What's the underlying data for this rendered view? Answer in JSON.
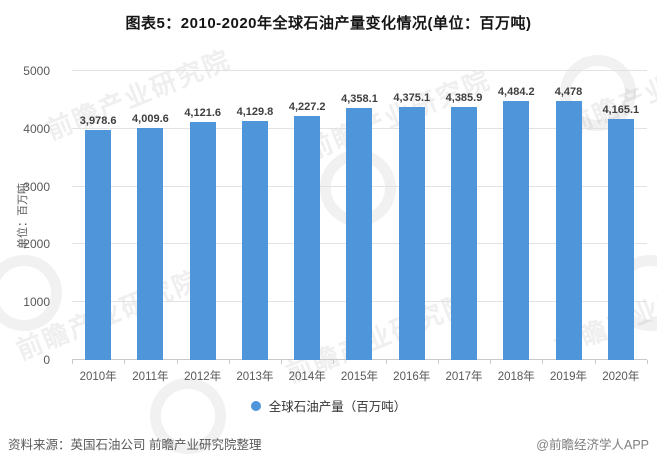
{
  "title": "图表5：2010-2020年全球石油产量变化情况(单位：百万吨)",
  "chart_data": {
    "type": "bar",
    "title": "图表5：2010-2020年全球石油产量变化情况(单位：百万吨)",
    "categories": [
      "2010年",
      "2011年",
      "2012年",
      "2013年",
      "2014年",
      "2015年",
      "2016年",
      "2017年",
      "2018年",
      "2019年",
      "2020年"
    ],
    "values": [
      3978.6,
      4009.6,
      4121.6,
      4129.8,
      4227.2,
      4358.1,
      4375.1,
      4385.9,
      4484.2,
      4478,
      4165.1
    ],
    "value_labels": [
      "3,978.6",
      "4,009.6",
      "4,121.6",
      "4,129.8",
      "4,227.2",
      "4,358.1",
      "4,375.1",
      "4,385.9",
      "4,484.2",
      "4,478",
      "4,165.1"
    ],
    "xlabel": "",
    "ylabel": "单位：百万吨",
    "ylim": [
      0,
      5000
    ],
    "yticks": [
      0,
      1000,
      2000,
      3000,
      4000,
      5000
    ],
    "grid": true,
    "legend_position": "bottom",
    "series_name": "全球石油产量（百万吨）",
    "bar_color": "#4f95da"
  },
  "legend": {
    "label": "全球石油产量（百万吨）",
    "color": "#4f95da"
  },
  "footer": {
    "source": "资料来源：英国石油公司 前瞻产业研究院整理",
    "credit": "@前瞻经济学人APP"
  },
  "watermark": {
    "text": "前瞻产业研究院"
  },
  "colors": {
    "bar": "#4f95da",
    "grid": "#e2e2e2",
    "axis_text": "#595959",
    "data_label": "#3f3f3f",
    "title_text": "#151515"
  }
}
